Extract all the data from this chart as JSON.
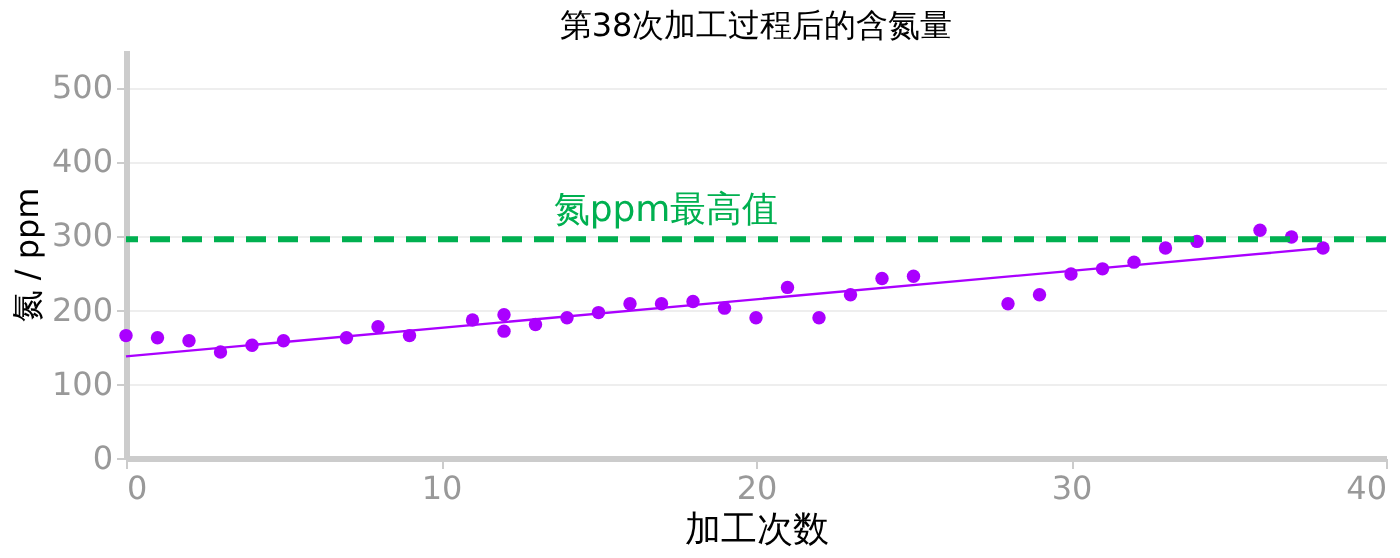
{
  "chart_data": {
    "type": "scatter",
    "title": "第38次加工过程后的含氮量",
    "xlabel": "加工次数",
    "ylabel": "氮 / ppm",
    "series": [
      {
        "color": "#aa00ff",
        "marker": "circle",
        "x": [
          0,
          1,
          2,
          3,
          4,
          5,
          7,
          8,
          9,
          11,
          12,
          12,
          13,
          14,
          15,
          16,
          17,
          18,
          19,
          20,
          21,
          22,
          23,
          24,
          25,
          28,
          29,
          30,
          31,
          32,
          33,
          34,
          36,
          37,
          38
        ],
        "values": [
          165,
          162,
          158,
          143,
          152,
          158,
          162,
          177,
          165,
          186,
          193,
          171,
          180,
          189,
          196,
          208,
          208,
          211,
          202,
          189,
          230,
          189,
          220,
          242,
          245,
          208,
          220,
          248,
          255,
          264,
          283,
          292,
          307,
          298,
          283
        ]
      },
      {
        "type": "line",
        "color": "#aa00ff",
        "marker": "none",
        "x": [
          0,
          38
        ],
        "values": [
          137,
          283
        ]
      }
    ],
    "xlim": [
      0,
      40
    ],
    "xticks": [
      0,
      10,
      20,
      30,
      40
    ],
    "ylim": [
      0,
      550
    ],
    "yticks": [
      0,
      100,
      200,
      300,
      400,
      500
    ],
    "ref_lines": [
      {
        "axis": "y",
        "value": 295,
        "label": "氮ppm最高值",
        "color": "#00b050",
        "line_style": "dashed"
      }
    ],
    "grid": "y"
  }
}
